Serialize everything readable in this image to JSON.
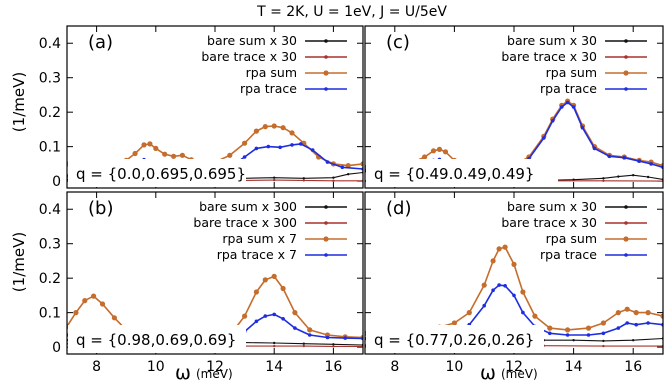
{
  "figure": {
    "title": "T = 2K, U = 1eV, J = U/5eV",
    "ylabel": "(1/meV)",
    "xlabel_main": "ω",
    "xlabel_unit": "(meV)"
  },
  "colors": {
    "bare_sum": "#111111",
    "bare_trace": "#a8322d",
    "rpa_sum": "#c56d2d",
    "rpa_trace": "#1f2de0"
  },
  "chart_data": [
    {
      "type": "line",
      "panel": "(a)",
      "annotation": "q = {0.0,0.695,0.695}",
      "xlim": [
        7,
        17
      ],
      "ylim": [
        -0.02,
        0.45
      ],
      "xticks": [
        8,
        10,
        12,
        14,
        16
      ],
      "yticks": [
        0,
        0.1,
        0.2,
        0.3,
        0.4
      ],
      "yticklabels": [
        "0",
        "0.1",
        "0.2",
        "0.3",
        "0.4"
      ],
      "legend_position": "top-right",
      "series": [
        {
          "name": "bare sum x 30",
          "color": "#111111",
          "x": [
            7,
            8,
            9,
            9.5,
            10,
            10.5,
            11,
            12,
            13,
            14,
            15,
            16,
            16.5,
            17
          ],
          "y": [
            0.005,
            0.008,
            0.012,
            0.016,
            0.022,
            0.026,
            0.022,
            0.01,
            0.008,
            0.01,
            0.008,
            0.01,
            0.02,
            0.025
          ]
        },
        {
          "name": "bare trace x 30",
          "color": "#a8322d",
          "x": [
            7,
            8,
            9,
            10,
            11,
            12,
            13,
            14,
            15,
            16,
            17
          ],
          "y": [
            0.0,
            0.001,
            0.002,
            0.003,
            0.004,
            0.003,
            0.002,
            0.003,
            0.002,
            0.001,
            0.001
          ]
        },
        {
          "name": "rpa sum",
          "color": "#c56d2d",
          "x": [
            7,
            7.5,
            8,
            8.5,
            9,
            9.3,
            9.6,
            9.8,
            10,
            10.3,
            10.6,
            10.9,
            11.2,
            11.6,
            12,
            12.5,
            13,
            13.4,
            13.7,
            14,
            14.3,
            14.6,
            15,
            15.5,
            16,
            16.5,
            17
          ],
          "y": [
            0.05,
            0.04,
            0.04,
            0.045,
            0.06,
            0.08,
            0.105,
            0.108,
            0.095,
            0.078,
            0.072,
            0.075,
            0.062,
            0.05,
            0.055,
            0.075,
            0.11,
            0.145,
            0.158,
            0.16,
            0.155,
            0.14,
            0.11,
            0.07,
            0.05,
            0.045,
            0.05
          ]
        },
        {
          "name": "rpa trace",
          "color": "#1f2de0",
          "x": [
            7,
            8,
            8.5,
            9,
            9.3,
            9.6,
            9.9,
            10.2,
            10.6,
            11,
            11.5,
            12,
            12.5,
            13,
            13.4,
            13.8,
            14.2,
            14.6,
            14.9,
            15.3,
            15.8,
            16.3,
            17
          ],
          "y": [
            0.015,
            0.018,
            0.022,
            0.035,
            0.05,
            0.062,
            0.055,
            0.038,
            0.028,
            0.02,
            0.018,
            0.022,
            0.04,
            0.07,
            0.095,
            0.1,
            0.098,
            0.105,
            0.108,
            0.09,
            0.055,
            0.04,
            0.035
          ]
        }
      ]
    },
    {
      "type": "line",
      "panel": "(c)",
      "annotation": "q = {0.49.0.49,0.49}",
      "xlim": [
        7,
        17
      ],
      "ylim": [
        -0.02,
        0.45
      ],
      "xticks": [
        8,
        10,
        12,
        14,
        16
      ],
      "yticks": [
        0,
        0.1,
        0.2,
        0.3,
        0.4
      ],
      "yticklabels": [],
      "legend_position": "top-right",
      "series": [
        {
          "name": "bare sum x 30",
          "color": "#111111",
          "x": [
            7,
            8,
            9,
            10,
            11,
            12,
            13,
            14,
            15,
            15.5,
            16,
            16.5,
            17
          ],
          "y": [
            0.0,
            0.0,
            0.001,
            0.002,
            0.002,
            0.002,
            0.002,
            0.004,
            0.008,
            0.013,
            0.017,
            0.012,
            0.005
          ]
        },
        {
          "name": "bare trace x 30",
          "color": "#a8322d",
          "x": [
            7,
            9,
            11,
            13,
            15,
            17
          ],
          "y": [
            0.0,
            0.0,
            0.001,
            0.001,
            0.001,
            0.0
          ]
        },
        {
          "name": "rpa sum",
          "color": "#c56d2d",
          "x": [
            7,
            7.5,
            8,
            8.5,
            9,
            9.3,
            9.5,
            9.7,
            10,
            10.5,
            11,
            11.5,
            12,
            12.5,
            13,
            13.3,
            13.6,
            13.8,
            14,
            14.3,
            14.7,
            15.2,
            15.7,
            16.2,
            16.6,
            17
          ],
          "y": [
            0.04,
            0.035,
            0.04,
            0.05,
            0.07,
            0.088,
            0.092,
            0.085,
            0.06,
            0.042,
            0.04,
            0.04,
            0.045,
            0.07,
            0.13,
            0.18,
            0.22,
            0.232,
            0.22,
            0.16,
            0.1,
            0.075,
            0.07,
            0.06,
            0.055,
            0.045
          ]
        },
        {
          "name": "rpa trace",
          "color": "#1f2de0",
          "x": [
            7,
            7.5,
            8,
            8.5,
            9,
            9.3,
            9.5,
            9.7,
            10,
            10.5,
            11,
            11.5,
            12,
            12.5,
            13,
            13.3,
            13.6,
            13.8,
            14,
            14.3,
            14.7,
            15.2,
            15.7,
            16.2,
            16.6,
            17
          ],
          "y": [
            0.03,
            0.025,
            0.028,
            0.035,
            0.05,
            0.06,
            0.063,
            0.055,
            0.042,
            0.036,
            0.036,
            0.038,
            0.042,
            0.065,
            0.125,
            0.175,
            0.215,
            0.228,
            0.215,
            0.155,
            0.095,
            0.072,
            0.068,
            0.058,
            0.05,
            0.04
          ]
        }
      ]
    },
    {
      "type": "line",
      "panel": "(b)",
      "annotation": "q = {0.98,0.69,0.69}",
      "xlim": [
        7,
        17
      ],
      "ylim": [
        -0.02,
        0.45
      ],
      "xticks": [
        8,
        10,
        12,
        14,
        16
      ],
      "yticks": [
        0,
        0.1,
        0.2,
        0.3,
        0.4
      ],
      "yticklabels": [
        "0",
        "0.1",
        "0.2",
        "0.3",
        "0.4"
      ],
      "legend_position": "top-right",
      "series": [
        {
          "name": "bare sum x 300",
          "color": "#111111",
          "x": [
            7,
            8,
            9,
            10,
            11,
            12,
            13,
            14,
            15,
            16,
            17
          ],
          "y": [
            0.02,
            0.02,
            0.018,
            0.015,
            0.014,
            0.013,
            0.013,
            0.012,
            0.01,
            0.008,
            0.006
          ]
        },
        {
          "name": "bare trace x 300",
          "color": "#a8322d",
          "x": [
            7,
            8,
            9,
            10,
            11,
            12,
            13,
            14,
            15,
            16,
            17
          ],
          "y": [
            0.01,
            0.015,
            0.01,
            0.006,
            0.004,
            0.003,
            0.003,
            0.003,
            0.003,
            0.002,
            0.002
          ]
        },
        {
          "name": "rpa sum x 7",
          "color": "#c56d2d",
          "x": [
            7,
            7.3,
            7.6,
            7.9,
            8.2,
            8.6,
            9,
            9.5,
            10,
            11,
            12,
            12.6,
            13,
            13.4,
            13.7,
            14,
            14.3,
            14.7,
            15.2,
            15.8,
            16.4,
            17
          ],
          "y": [
            0.06,
            0.1,
            0.135,
            0.148,
            0.125,
            0.085,
            0.05,
            0.032,
            0.025,
            0.02,
            0.025,
            0.045,
            0.09,
            0.16,
            0.195,
            0.205,
            0.17,
            0.1,
            0.05,
            0.035,
            0.03,
            0.028
          ]
        },
        {
          "name": "rpa trace x 7",
          "color": "#1f2de0",
          "x": [
            7,
            7.3,
            7.6,
            7.9,
            8.2,
            8.6,
            9,
            9.5,
            10,
            11,
            12,
            12.6,
            13,
            13.4,
            13.7,
            14,
            14.3,
            14.7,
            15.2,
            15.8,
            16.4,
            17
          ],
          "y": [
            0.035,
            0.045,
            0.05,
            0.052,
            0.048,
            0.04,
            0.032,
            0.027,
            0.022,
            0.018,
            0.02,
            0.028,
            0.045,
            0.075,
            0.09,
            0.095,
            0.082,
            0.055,
            0.035,
            0.028,
            0.026,
            0.025
          ]
        }
      ]
    },
    {
      "type": "line",
      "panel": "(d)",
      "annotation": "q = {0.77,0.26,0.26}",
      "xlim": [
        7,
        17
      ],
      "ylim": [
        -0.02,
        0.45
      ],
      "xticks": [
        8,
        10,
        12,
        14,
        16
      ],
      "yticks": [
        0,
        0.1,
        0.2,
        0.3,
        0.4
      ],
      "yticklabels": [],
      "legend_position": "top-right",
      "series": [
        {
          "name": "bare sum x 30",
          "color": "#111111",
          "x": [
            7,
            8,
            9,
            10,
            11,
            12,
            13,
            14,
            15,
            16,
            17
          ],
          "y": [
            0.005,
            0.008,
            0.01,
            0.012,
            0.015,
            0.018,
            0.02,
            0.02,
            0.018,
            0.02,
            0.025
          ]
        },
        {
          "name": "bare trace x 30",
          "color": "#a8322d",
          "x": [
            7,
            9,
            11,
            13,
            15,
            17
          ],
          "y": [
            0.002,
            0.003,
            0.004,
            0.004,
            0.003,
            0.003
          ]
        },
        {
          "name": "rpa sum",
          "color": "#c56d2d",
          "x": [
            7,
            7.5,
            8,
            8.5,
            9,
            9.5,
            10,
            10.5,
            11,
            11.3,
            11.5,
            11.7,
            12,
            12.3,
            12.7,
            13.2,
            13.8,
            14.5,
            15,
            15.5,
            15.8,
            16.1,
            16.5,
            17
          ],
          "y": [
            0.04,
            0.045,
            0.055,
            0.05,
            0.05,
            0.058,
            0.07,
            0.1,
            0.18,
            0.25,
            0.285,
            0.29,
            0.24,
            0.16,
            0.09,
            0.055,
            0.05,
            0.055,
            0.07,
            0.1,
            0.11,
            0.1,
            0.1,
            0.09
          ]
        },
        {
          "name": "rpa trace",
          "color": "#1f2de0",
          "x": [
            7,
            7.5,
            8,
            8.5,
            9,
            9.5,
            10,
            10.5,
            11,
            11.3,
            11.5,
            11.7,
            12,
            12.3,
            12.7,
            13.2,
            13.8,
            14.5,
            15,
            15.5,
            15.8,
            16.1,
            16.5,
            17
          ],
          "y": [
            0.025,
            0.03,
            0.035,
            0.032,
            0.035,
            0.04,
            0.048,
            0.065,
            0.12,
            0.165,
            0.18,
            0.178,
            0.15,
            0.1,
            0.06,
            0.04,
            0.035,
            0.035,
            0.04,
            0.055,
            0.07,
            0.065,
            0.07,
            0.065
          ]
        }
      ]
    }
  ]
}
